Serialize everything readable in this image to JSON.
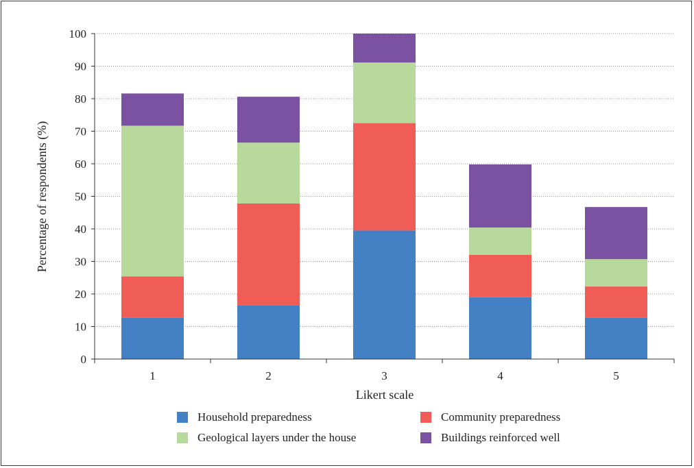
{
  "chart_data": {
    "type": "bar",
    "stacked": true,
    "xlabel": "Likert scale",
    "ylabel": "Percentage of respondents (%)",
    "ylim": [
      0,
      100
    ],
    "yticks": [
      0,
      10,
      20,
      30,
      40,
      50,
      60,
      70,
      80,
      90,
      100
    ],
    "grid": "horizontal dotted",
    "legend_position": "bottom",
    "categories": [
      "1",
      "2",
      "3",
      "4",
      "5"
    ],
    "series": [
      {
        "name": "Household preparedness",
        "color": "#4480c4",
        "values": [
          12.7,
          16.5,
          39.5,
          19.0,
          12.7
        ]
      },
      {
        "name": "Community preparedness",
        "color": "#f05d57",
        "values": [
          12.7,
          31.3,
          33.0,
          13.0,
          9.6
        ]
      },
      {
        "name": "Geological layers under the house",
        "color": "#b8d99c",
        "values": [
          46.3,
          18.7,
          18.6,
          8.4,
          8.4
        ]
      },
      {
        "name": "Buildings reinforced well",
        "color": "#7b51a2",
        "values": [
          9.9,
          14.1,
          8.9,
          19.4,
          16.0
        ]
      }
    ]
  }
}
